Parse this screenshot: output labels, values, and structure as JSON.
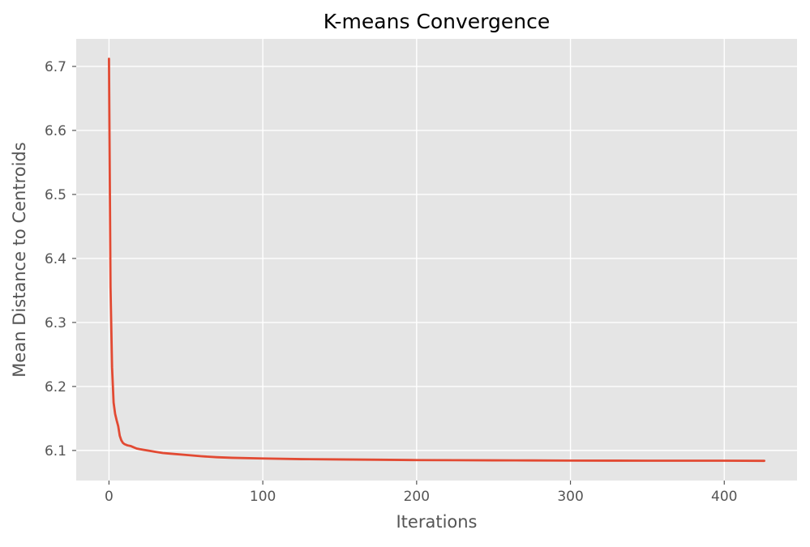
{
  "chart_data": {
    "type": "line",
    "title": "K-means Convergence",
    "xlabel": "Iterations",
    "ylabel": "Mean Distance to Centroids",
    "xlim": [
      -21.3,
      447.3
    ],
    "ylim": [
      6.053,
      6.743
    ],
    "x_ticks": [
      0,
      100,
      200,
      300,
      400
    ],
    "y_ticks": [
      6.1,
      6.2,
      6.3,
      6.4,
      6.5,
      6.6,
      6.7
    ],
    "x_tick_labels": [
      "0",
      "100",
      "200",
      "300",
      "400"
    ],
    "y_tick_labels": [
      "6.1",
      "6.2",
      "6.3",
      "6.4",
      "6.5",
      "6.6",
      "6.7"
    ],
    "grid": true,
    "legend": "none",
    "colors": {
      "plot_background": "#e5e5e5",
      "grid": "#ffffff",
      "line": "#e24a33"
    },
    "series": [
      {
        "x": [
          0,
          1,
          2,
          3,
          4,
          5,
          6,
          7,
          8,
          9,
          10,
          12,
          14,
          16,
          18,
          20,
          25,
          30,
          35,
          40,
          50,
          60,
          70,
          80,
          100,
          125,
          150,
          175,
          200,
          225,
          250,
          275,
          300,
          325,
          350,
          375,
          400,
          426
        ],
        "y": [
          6.712,
          6.355,
          6.23,
          6.175,
          6.157,
          6.147,
          6.138,
          6.123,
          6.116,
          6.112,
          6.11,
          6.108,
          6.107,
          6.105,
          6.103,
          6.102,
          6.1,
          6.098,
          6.096,
          6.095,
          6.093,
          6.091,
          6.0895,
          6.0885,
          6.0875,
          6.0865,
          6.086,
          6.0855,
          6.085,
          6.0848,
          6.0846,
          6.0844,
          6.0842,
          6.0841,
          6.084,
          6.084,
          6.084,
          6.0838
        ]
      }
    ]
  }
}
